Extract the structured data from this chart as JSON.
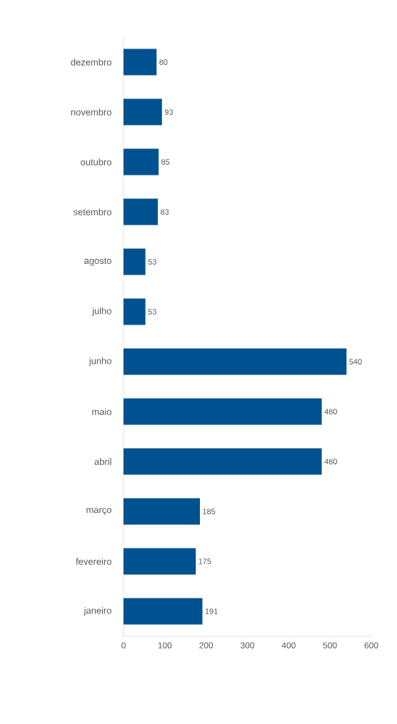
{
  "chart_data": {
    "type": "bar",
    "orientation": "horizontal",
    "categories": [
      "dezembro",
      "novembro",
      "outubro",
      "setembro",
      "agosto",
      "julho",
      "junho",
      "maio",
      "abril",
      "março",
      "fevereiro",
      "janeiro"
    ],
    "values": [
      80,
      93,
      85,
      83,
      53,
      53,
      540,
      480,
      480,
      185,
      175,
      191
    ],
    "color": "#00518f",
    "data_labels": true,
    "xlim": [
      0,
      600
    ],
    "xticks": [
      0,
      100,
      200,
      300,
      400,
      500,
      600
    ]
  }
}
